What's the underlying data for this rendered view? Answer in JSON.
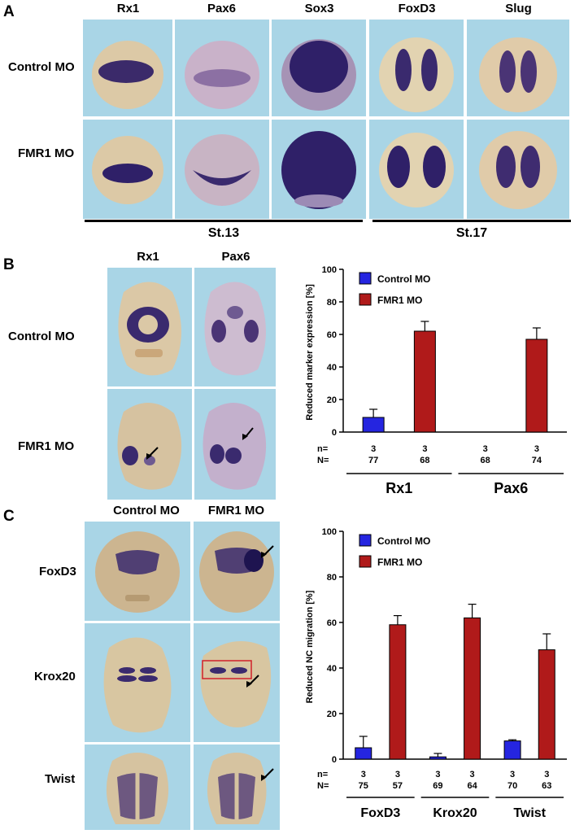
{
  "panel_a": {
    "label": "A",
    "columns": [
      "Rx1",
      "Pax6",
      "Sox3",
      "FoxD3",
      "Slug"
    ],
    "rows": [
      "Control MO",
      "FMR1 MO"
    ],
    "stages": [
      "St.13",
      "St.17"
    ]
  },
  "panel_b": {
    "label": "B",
    "columns": [
      "Rx1",
      "Pax6"
    ],
    "rows": [
      "Control MO",
      "FMR1 MO"
    ]
  },
  "panel_c": {
    "label": "C",
    "columns": [
      "Control MO",
      "FMR1 MO"
    ],
    "rows": [
      "FoxD3",
      "Krox20",
      "Twist"
    ]
  },
  "colors": {
    "control": "#2525e0",
    "fmr1": "#b01a1a",
    "background": "#a9d5e6",
    "stain": "#3b2a6a"
  },
  "chart_data": [
    {
      "type": "bar",
      "ylabel": "Reduced marker expression [%]",
      "ylim": [
        0,
        100
      ],
      "yticks": [
        "0",
        "20",
        "40",
        "60",
        "80",
        "100"
      ],
      "legend": [
        "Control MO",
        "FMR1 MO"
      ],
      "groups": [
        "Rx1",
        "Pax6"
      ],
      "series": [
        {
          "name": "Control MO",
          "values": [
            9,
            0
          ],
          "errors": [
            5,
            0
          ]
        },
        {
          "name": "FMR1 MO",
          "values": [
            62,
            57
          ],
          "errors": [
            6,
            7
          ]
        }
      ],
      "n_label": "n=",
      "N_label": "N=",
      "n": [
        "3",
        "3",
        "3",
        "3"
      ],
      "N": [
        "77",
        "68",
        "68",
        "74"
      ]
    },
    {
      "type": "bar",
      "ylabel": "Reduced NC migration [%]",
      "ylim": [
        0,
        100
      ],
      "yticks": [
        "0",
        "20",
        "40",
        "60",
        "80",
        "100"
      ],
      "legend": [
        "Control MO",
        "FMR1 MO"
      ],
      "groups": [
        "FoxD3",
        "Krox20",
        "Twist"
      ],
      "series": [
        {
          "name": "Control MO",
          "values": [
            5,
            1,
            8
          ],
          "errors": [
            5,
            1.5,
            0.5
          ]
        },
        {
          "name": "FMR1 MO",
          "values": [
            59,
            62,
            48
          ],
          "errors": [
            4,
            6,
            7
          ]
        }
      ],
      "n_label": "n=",
      "N_label": "N=",
      "n": [
        "3",
        "3",
        "3",
        "3",
        "3",
        "3"
      ],
      "N": [
        "75",
        "57",
        "69",
        "64",
        "70",
        "63"
      ]
    }
  ]
}
